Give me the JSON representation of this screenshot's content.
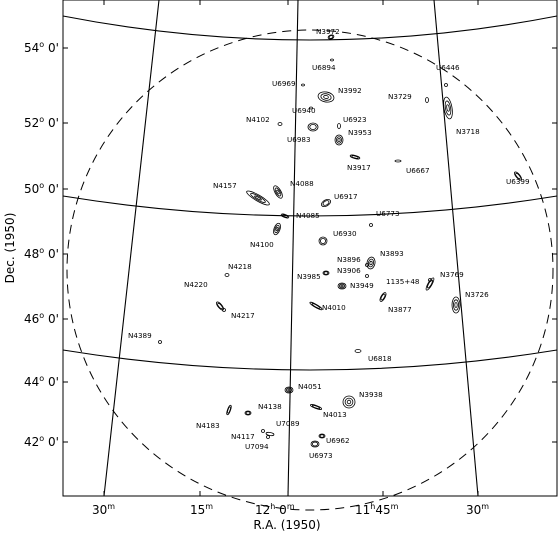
{
  "chart_data": {
    "type": "scatter",
    "title": "",
    "xlabel": "R.A. (1950)",
    "ylabel": "Dec. (1950)",
    "x_ticks": [
      {
        "text": "30",
        "sup": "m"
      },
      {
        "text": "15",
        "sup": "m"
      },
      {
        "text": "12",
        "sup": "h",
        "text2": " 0",
        "sup2": "m"
      },
      {
        "text": "11",
        "sup": "h",
        "text2": "45",
        "sup2": "m"
      },
      {
        "text": "30",
        "sup": "m"
      }
    ],
    "y_ticks": [
      {
        "text": "42",
        "unit": "o",
        "text2": " 0'"
      },
      {
        "text": "44",
        "unit": "o",
        "text2": " 0'"
      },
      {
        "text": "46",
        "unit": "o",
        "text2": " 0'"
      },
      {
        "text": "48",
        "unit": "o",
        "text2": " 0'"
      },
      {
        "text": "50",
        "unit": "o",
        "text2": " 0'"
      },
      {
        "text": "52",
        "unit": "o",
        "text2": " 0'"
      },
      {
        "text": "54",
        "unit": "o",
        "text2": " 0'"
      }
    ],
    "galaxies": [
      {
        "name": "N3972"
      },
      {
        "name": "U6894"
      },
      {
        "name": "U6969"
      },
      {
        "name": "N3992"
      },
      {
        "name": "U6446"
      },
      {
        "name": "N3729"
      },
      {
        "name": "U6940"
      },
      {
        "name": "N4102"
      },
      {
        "name": "U6923"
      },
      {
        "name": "N3953"
      },
      {
        "name": "N3718"
      },
      {
        "name": "U6983"
      },
      {
        "name": "N3917"
      },
      {
        "name": "U6667"
      },
      {
        "name": "U6399"
      },
      {
        "name": "N4157"
      },
      {
        "name": "N4088"
      },
      {
        "name": "U6917"
      },
      {
        "name": "U6773"
      },
      {
        "name": "N4085"
      },
      {
        "name": "U6930"
      },
      {
        "name": "N4100"
      },
      {
        "name": "N3893"
      },
      {
        "name": "N4218"
      },
      {
        "name": "N3896"
      },
      {
        "name": "N3906"
      },
      {
        "name": "N3985"
      },
      {
        "name": "1135+48"
      },
      {
        "name": "N3769"
      },
      {
        "name": "N3949"
      },
      {
        "name": "N4220"
      },
      {
        "name": "N3726"
      },
      {
        "name": "N4010"
      },
      {
        "name": "N3877"
      },
      {
        "name": "N4217"
      },
      {
        "name": "N4389"
      },
      {
        "name": "U6818"
      },
      {
        "name": "N4051"
      },
      {
        "name": "N3938"
      },
      {
        "name": "N4138"
      },
      {
        "name": "N4013"
      },
      {
        "name": "N4183"
      },
      {
        "name": "U7089"
      },
      {
        "name": "N4117"
      },
      {
        "name": "U6962"
      },
      {
        "name": "U7094"
      },
      {
        "name": "U6973"
      }
    ]
  }
}
